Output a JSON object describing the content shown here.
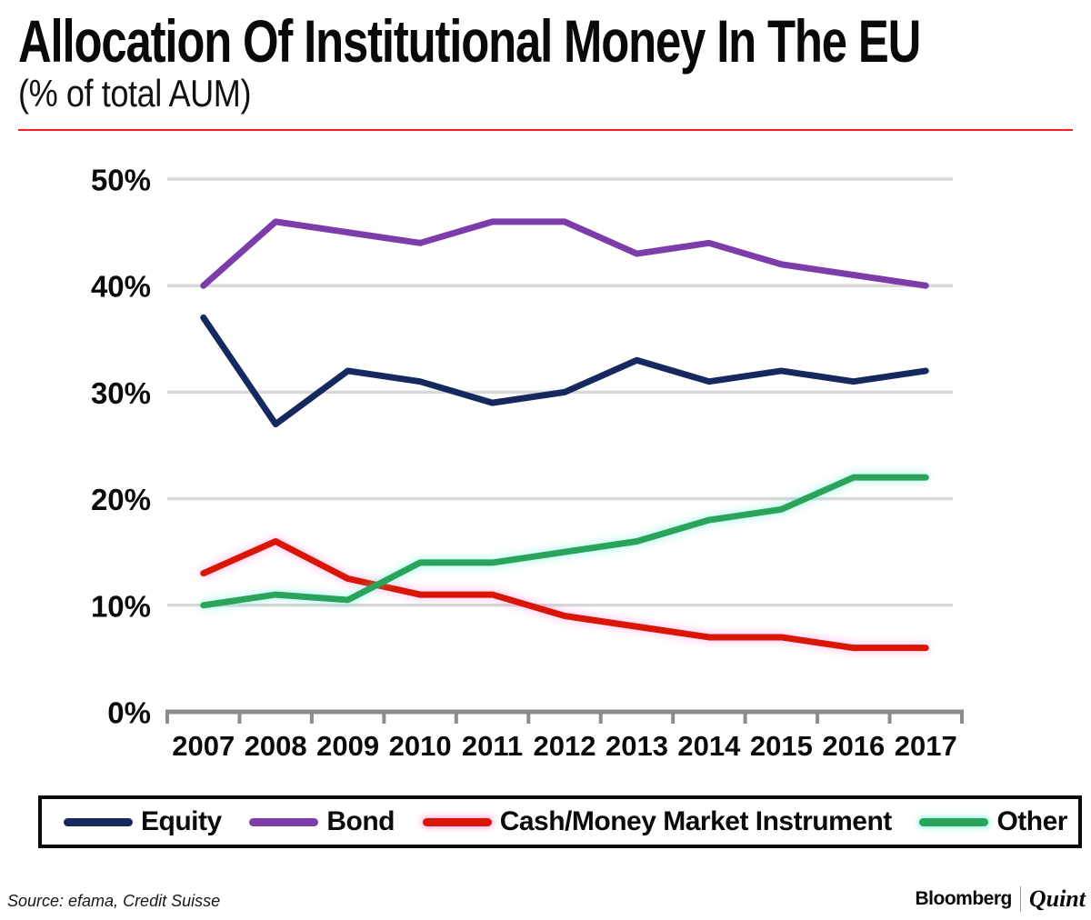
{
  "header": {
    "title": "Allocation Of Institutional Money In The EU",
    "subtitle": "(% of total AUM)"
  },
  "chart_data": {
    "type": "line",
    "title": "Allocation Of Institutional Money In The EU",
    "subtitle": "(% of total AUM)",
    "categories": [
      "2007",
      "2008",
      "2009",
      "2010",
      "2011",
      "2012",
      "2013",
      "2014",
      "2015",
      "2016",
      "2017"
    ],
    "series": [
      {
        "key": "equity",
        "name": "Equity",
        "color": "#15295f",
        "glow": "",
        "values": [
          37,
          27,
          32,
          31,
          29,
          30,
          33,
          31,
          32,
          31,
          32
        ]
      },
      {
        "key": "bond",
        "name": "Bond",
        "color": "#7c3daa",
        "glow": "",
        "values": [
          40,
          46,
          45,
          44,
          46,
          46,
          43,
          44,
          42,
          41,
          40
        ]
      },
      {
        "key": "cash-money-market-instrument",
        "name": "Cash/Money Market Instrument",
        "color": "#d91604",
        "glow": "rgba(255,80,210,0.45)",
        "values": [
          13,
          16,
          12.5,
          11,
          11,
          9,
          8,
          7,
          7,
          6,
          6
        ]
      },
      {
        "key": "other",
        "name": "Other",
        "color": "#2aa45b",
        "glow": "rgba(60,240,210,0.5)",
        "values": [
          10,
          11,
          10.5,
          14,
          14,
          15,
          16,
          18,
          19,
          22,
          22
        ]
      }
    ],
    "ylim": [
      0,
      50
    ],
    "ytick_values": [
      50,
      40,
      30,
      20,
      10,
      0
    ],
    "yticks": [
      "50%",
      "40%",
      "30%",
      "20%",
      "10%",
      "0%"
    ],
    "xlabel": "",
    "ylabel": "",
    "grid": "horizontal",
    "legend_position": "bottom",
    "accent_rule_color": "#fb2015",
    "gridline_color": "#d9d9d9",
    "axis_color": "#8c8c8c"
  },
  "footer": {
    "source": "Source: efama, Credit Suisse",
    "brand": "Bloomberg",
    "brand2": "Quint"
  }
}
